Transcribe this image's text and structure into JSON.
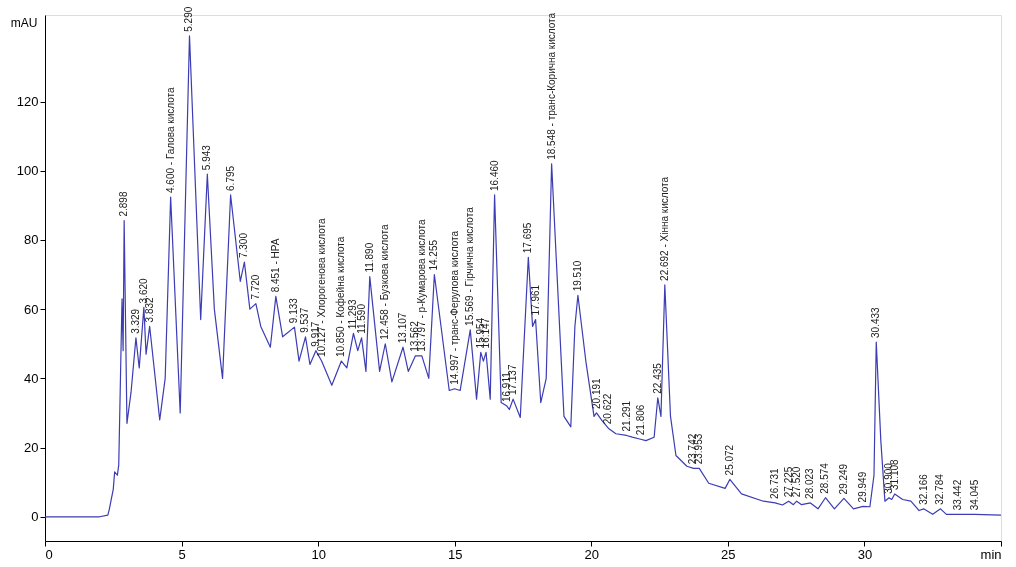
{
  "chart_data": {
    "type": "line",
    "xlabel": null,
    "ylabel": "mAU",
    "xlim": [
      0,
      35
    ],
    "ylim": [
      -7,
      145
    ],
    "xticks": [
      0,
      5,
      10,
      15,
      20,
      25,
      30,
      {
        "value": 35,
        "label": "min"
      }
    ],
    "yticks": [
      0,
      20,
      40,
      60,
      80,
      100,
      120
    ],
    "grid": false,
    "marker": "none",
    "line_style": "solid",
    "series": [
      {
        "color": "#3c3cb4",
        "x": [
          0,
          1,
          2,
          2.3,
          2.35,
          2.5,
          2.55,
          2.65,
          2.7,
          2.75,
          2.82,
          2.86,
          2.898,
          3.0,
          3.15,
          3.329,
          3.45,
          3.62,
          3.7,
          3.832,
          4.2,
          4.4,
          4.6,
          4.95,
          5.29,
          5.7,
          5.943,
          6.2,
          6.5,
          6.795,
          7.15,
          7.3,
          7.5,
          7.72,
          7.9,
          8.25,
          8.451,
          8.7,
          9.133,
          9.3,
          9.537,
          9.7,
          9.917,
          10.127,
          10.5,
          10.85,
          11.05,
          11.293,
          11.45,
          11.59,
          11.75,
          11.89,
          12.25,
          12.458,
          12.7,
          13.107,
          13.3,
          13.562,
          13.797,
          14.05,
          14.255,
          14.8,
          14.997,
          15.2,
          15.569,
          15.8,
          15.954,
          16.05,
          16.147,
          16.3,
          16.46,
          16.7,
          16.911,
          17.0,
          17.137,
          17.4,
          17.695,
          17.85,
          17.961,
          18.15,
          18.35,
          18.548,
          19.0,
          19.25,
          19.4,
          19.51,
          19.8,
          20.1,
          20.191,
          20.4,
          20.622,
          20.9,
          21.291,
          21.5,
          21.806,
          22.0,
          22.3,
          22.435,
          22.55,
          22.692,
          22.9,
          23.1,
          23.5,
          23.742,
          23.953,
          24.3,
          24.9,
          25.072,
          25.5,
          26.3,
          26.731,
          27.0,
          27.225,
          27.4,
          27.52,
          27.7,
          28.023,
          28.3,
          28.574,
          28.9,
          29.249,
          29.6,
          29.949,
          30.2,
          30.35,
          30.433,
          30.6,
          30.75,
          30.9,
          31.0,
          31.108,
          31.4,
          31.7,
          32.0,
          32.166,
          32.5,
          32.784,
          33.0,
          33.442,
          34.045,
          35
        ],
        "values": [
          0,
          0,
          0,
          0.5,
          2,
          8,
          13,
          12,
          15,
          35,
          63,
          48,
          85.6,
          27,
          36,
          51.7,
          43,
          60.5,
          47,
          55,
          28,
          40,
          92.4,
          30,
          139,
          57,
          99,
          60,
          40,
          93,
          68,
          73.6,
          60,
          61.6,
          55,
          49,
          63.7,
          52,
          54.8,
          45,
          52,
          44,
          48,
          45,
          38,
          45,
          43,
          53,
          48,
          51.7,
          42,
          69.4,
          42,
          50,
          39,
          49,
          42,
          46.5,
          46.5,
          40,
          70,
          36.5,
          37,
          36.5,
          54,
          34,
          47.5,
          45,
          47.5,
          34,
          93,
          33,
          32,
          31,
          34,
          28.7,
          75,
          55,
          57,
          33,
          40,
          102,
          29,
          26,
          55,
          64,
          45,
          29,
          30,
          27.7,
          25.6,
          24,
          23.5,
          23,
          22.4,
          22,
          23,
          34.4,
          29,
          67,
          29,
          17.7,
          14.6,
          14,
          14,
          9.7,
          8.2,
          10.8,
          6.6,
          4.5,
          4,
          3.4,
          4.5,
          3.5,
          4.5,
          3.5,
          4,
          2.3,
          5.5,
          2.3,
          5.3,
          2.3,
          3,
          2.9,
          12,
          50.5,
          22,
          4.5,
          5.5,
          5,
          6.6,
          5,
          4.5,
          1.8,
          2.3,
          0.7,
          2.3,
          0.7,
          0.7,
          0.7,
          0.5
        ]
      }
    ],
    "annotations": [
      {
        "text": "2.898",
        "x": 2.898,
        "y": 85.6
      },
      {
        "text": "3.329",
        "x": 3.329,
        "y": 51.7
      },
      {
        "text": "3.620",
        "x": 3.62,
        "y": 60.5
      },
      {
        "text": "3.832",
        "x": 3.832,
        "y": 55
      },
      {
        "text": "4.600 - Галова кислота",
        "x": 4.6,
        "y": 92.4
      },
      {
        "text": "5.290",
        "x": 5.29,
        "y": 139
      },
      {
        "text": "5.943",
        "x": 5.943,
        "y": 99
      },
      {
        "text": "6.795",
        "x": 6.795,
        "y": 93
      },
      {
        "text": "7.300",
        "x": 7.3,
        "y": 73.6
      },
      {
        "text": "7.720",
        "x": 7.72,
        "y": 61.6
      },
      {
        "text": "8.451 - HPA",
        "x": 8.451,
        "y": 63.7
      },
      {
        "text": "9.133",
        "x": 9.133,
        "y": 54.8
      },
      {
        "text": "9.537",
        "x": 9.537,
        "y": 52
      },
      {
        "text": "9.917",
        "x": 9.917,
        "y": 48
      },
      {
        "text": "10.127 - Хлорогенова кислота",
        "x": 10.127,
        "y": 45
      },
      {
        "text": "10.850 - Кофейна кислота",
        "x": 10.85,
        "y": 45
      },
      {
        "text": "11.293",
        "x": 11.293,
        "y": 53
      },
      {
        "text": "11.590",
        "x": 11.59,
        "y": 51.7
      },
      {
        "text": "11.890",
        "x": 11.89,
        "y": 69.4
      },
      {
        "text": "12.458 - Бузкова кислота",
        "x": 12.458,
        "y": 50
      },
      {
        "text": "13.107",
        "x": 13.107,
        "y": 49
      },
      {
        "text": "13.562",
        "x": 13.562,
        "y": 46.5
      },
      {
        "text": "13.797 - р-Кумарова кислота",
        "x": 13.797,
        "y": 46.5
      },
      {
        "text": "14.255",
        "x": 14.255,
        "y": 70
      },
      {
        "text": "14.997 - транс-Ферулова кислота",
        "x": 14.997,
        "y": 37
      },
      {
        "text": "15.569 - Гірчична кислота",
        "x": 15.569,
        "y": 54
      },
      {
        "text": "15.954",
        "x": 15.954,
        "y": 47.5
      },
      {
        "text": "16.147",
        "x": 16.147,
        "y": 47.5
      },
      {
        "text": "16.460",
        "x": 16.46,
        "y": 93
      },
      {
        "text": "16.911",
        "x": 16.911,
        "y": 32
      },
      {
        "text": "17.137",
        "x": 17.137,
        "y": 34
      },
      {
        "text": "17.695",
        "x": 17.695,
        "y": 75
      },
      {
        "text": "17.961",
        "x": 17.961,
        "y": 57
      },
      {
        "text": "18.548 - транс-Корична кислота",
        "x": 18.548,
        "y": 102
      },
      {
        "text": "19.510",
        "x": 19.51,
        "y": 64
      },
      {
        "text": "20.191",
        "x": 20.191,
        "y": 30
      },
      {
        "text": "20.622",
        "x": 20.622,
        "y": 25.6
      },
      {
        "text": "21.291",
        "x": 21.291,
        "y": 23.5
      },
      {
        "text": "21.806",
        "x": 21.806,
        "y": 22.4
      },
      {
        "text": "22.435",
        "x": 22.435,
        "y": 34.4
      },
      {
        "text": "22.692 - Хінна кислота",
        "x": 22.692,
        "y": 67
      },
      {
        "text": "23.742",
        "x": 23.742,
        "y": 14
      },
      {
        "text": "23.953",
        "x": 23.953,
        "y": 14
      },
      {
        "text": "25.072",
        "x": 25.072,
        "y": 10.8
      },
      {
        "text": "26.731",
        "x": 26.731,
        "y": 4
      },
      {
        "text": "27.225",
        "x": 27.225,
        "y": 4.5
      },
      {
        "text": "27.520",
        "x": 27.52,
        "y": 4.5
      },
      {
        "text": "28.023",
        "x": 28.023,
        "y": 4
      },
      {
        "text": "28.574",
        "x": 28.574,
        "y": 5.5
      },
      {
        "text": "29.249",
        "x": 29.249,
        "y": 5.3
      },
      {
        "text": "29.949",
        "x": 29.949,
        "y": 3
      },
      {
        "text": "30.433",
        "x": 30.433,
        "y": 50.5
      },
      {
        "text": "30.900",
        "x": 30.9,
        "y": 5.5
      },
      {
        "text": "31.108",
        "x": 31.108,
        "y": 6.6
      },
      {
        "text": "32.166",
        "x": 32.166,
        "y": 2.3
      },
      {
        "text": "32.784",
        "x": 32.784,
        "y": 2.3
      },
      {
        "text": "33.442",
        "x": 33.442,
        "y": 0.7
      },
      {
        "text": "34.045",
        "x": 34.045,
        "y": 0.7
      }
    ]
  }
}
